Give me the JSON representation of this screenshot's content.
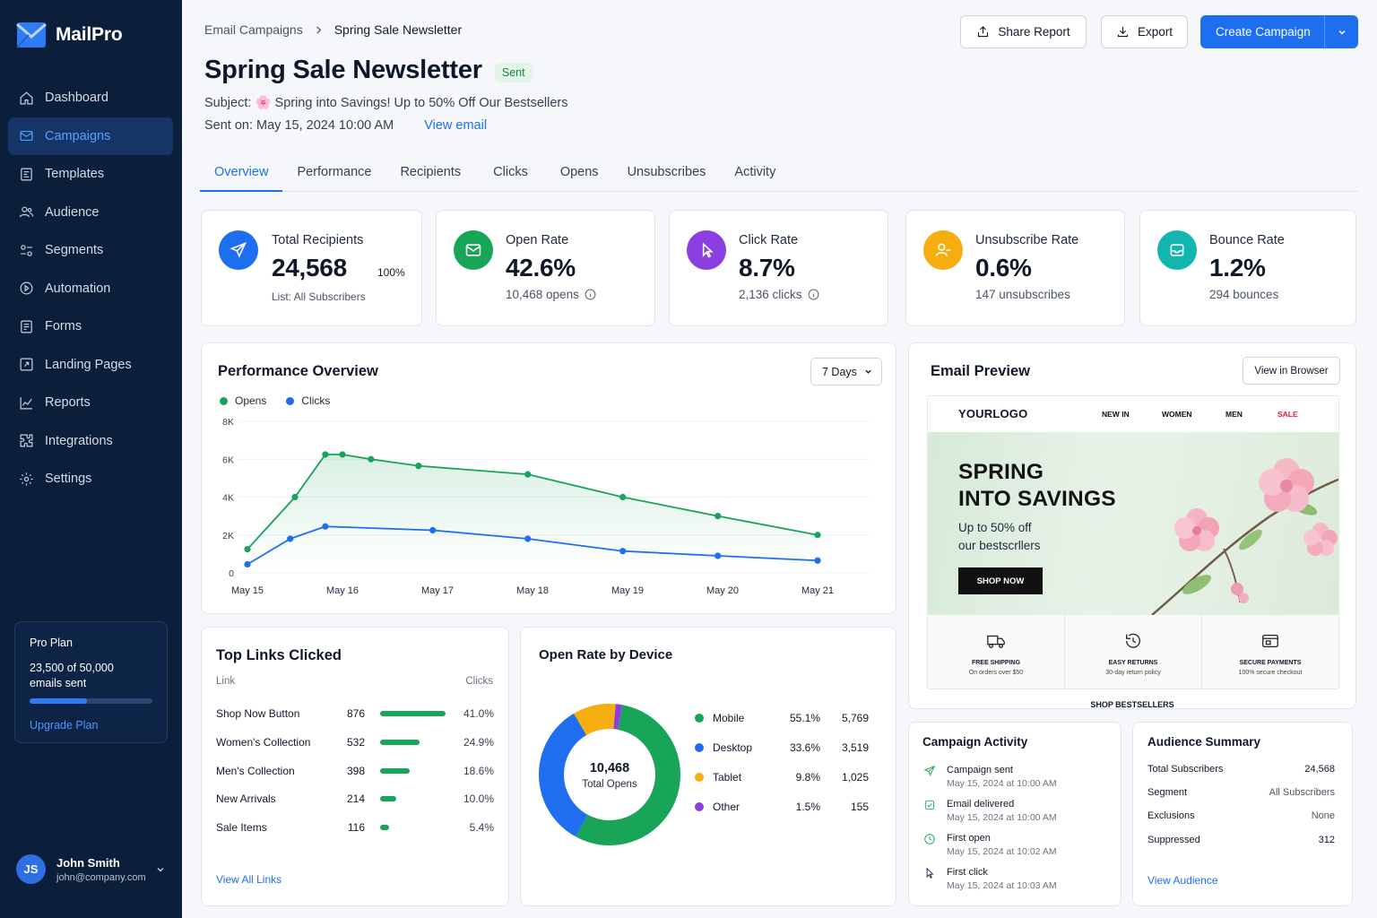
{
  "app": {
    "name": "MailPro"
  },
  "sidebar": {
    "items": [
      {
        "label": "Dashboard",
        "icon": "home-icon"
      },
      {
        "label": "Campaigns",
        "icon": "mail-icon",
        "active": true
      },
      {
        "label": "Templates",
        "icon": "template-icon"
      },
      {
        "label": "Audience",
        "icon": "users-icon"
      },
      {
        "label": "Segments",
        "icon": "segments-icon"
      },
      {
        "label": "Automation",
        "icon": "automation-icon"
      },
      {
        "label": "Forms",
        "icon": "form-icon"
      },
      {
        "label": "Landing Pages",
        "icon": "landing-page-icon"
      },
      {
        "label": "Reports",
        "icon": "chart-icon"
      },
      {
        "label": "Integrations",
        "icon": "puzzle-icon"
      },
      {
        "label": "Settings",
        "icon": "gear-icon"
      }
    ],
    "plan": {
      "name": "Pro Plan",
      "usage_line1": "23,500 of 50,000",
      "usage_line2": "emails sent",
      "usage_fraction": 0.47,
      "upgrade": "Upgrade Plan"
    },
    "user": {
      "initials": "JS",
      "name": "John Smith",
      "email": "john@company.com"
    }
  },
  "header": {
    "breadcrumb": [
      "Email Campaigns",
      "Spring Sale Newsletter"
    ],
    "title": "Spring Sale Newsletter",
    "status": "Sent",
    "subject_label": "Subject:",
    "subject": "🌸 Spring into Savings! Up to 50% Off Our Bestsellers",
    "sent_on": "Sent on: May 15, 2024 10:00 AM",
    "view_email": "View email",
    "share_button": "Share Report",
    "export_button": "Export",
    "create_button": "Create Campaign"
  },
  "tabs": [
    "Overview",
    "Performance",
    "Recipients",
    "Clicks",
    "Opens",
    "Unsubscribes",
    "Activity"
  ],
  "stats": [
    {
      "label": "Total Recipients",
      "value": "24,568",
      "pct": "100%",
      "sub": "List: All Subscribers",
      "icon": "send-icon",
      "color": "#1e6ff0"
    },
    {
      "label": "Open Rate",
      "value": "42.6%",
      "sub": "10,468 opens",
      "icon": "envelope-icon",
      "color": "#18a558"
    },
    {
      "label": "Click Rate",
      "value": "8.7%",
      "sub": "2,136 clicks",
      "icon": "cursor-icon",
      "color": "#8b3fe0"
    },
    {
      "label": "Unsubscribe Rate",
      "value": "0.6%",
      "sub": "147 unsubscribes",
      "icon": "user-minus-icon",
      "color": "#f6ad0f"
    },
    {
      "label": "Bounce Rate",
      "value": "1.2%",
      "sub": "294 bounces",
      "icon": "inbox-icon",
      "color": "#12b5b0"
    }
  ],
  "performance": {
    "title": "Performance Overview",
    "range": "7 Days",
    "chart_data": {
      "type": "line",
      "categories": [
        "May 15",
        "May 16",
        "May 17",
        "May 18",
        "May 19",
        "May 20",
        "May 21"
      ],
      "y_ticks": [
        "0",
        "2K",
        "4K",
        "6K",
        "8K"
      ],
      "ylim": [
        0,
        8000
      ],
      "series": [
        {
          "name": "Opens",
          "color": "#19a35a",
          "x": [
            0,
            0.5,
            0.82,
            1.0,
            1.3,
            1.8,
            2.95,
            3.95,
            4.95,
            6.0
          ],
          "values": [
            1250,
            4000,
            6250,
            6250,
            6000,
            5650,
            5200,
            4000,
            3000,
            2000
          ]
        },
        {
          "name": "Clicks",
          "color": "#1e6ff0",
          "x": [
            0,
            0.45,
            0.82,
            1.95,
            2.95,
            3.95,
            4.95,
            6.0
          ],
          "values": [
            450,
            1800,
            2450,
            2250,
            1800,
            1150,
            900,
            650
          ]
        }
      ]
    }
  },
  "email_preview": {
    "title": "Email Preview",
    "view_browser": "View in Browser",
    "logo": "YOURLOGO",
    "nav": [
      "NEW IN",
      "WOMEN",
      "MEN",
      "SALE"
    ],
    "hero_line1": "SPRING",
    "hero_line2": "INTO SAVINGS",
    "hero_sub1": "Up to 50% off",
    "hero_sub2": "our bestscrllers",
    "shop_now": "SHOP NOW",
    "features": [
      {
        "title": "FREE SHIPPING",
        "sub": "On orders over $50",
        "icon": "truck-icon"
      },
      {
        "title": "EASY RETURNS",
        "sub": "30-day return policy",
        "icon": "return-icon"
      },
      {
        "title": "SECURE PAYMENTS",
        "sub": "100% secure checkout",
        "icon": "card-icon"
      }
    ],
    "bestsellers": "SHOP BESTSELLERS"
  },
  "top_links": {
    "title": "Top Links Clicked",
    "col_link": "Link",
    "col_clicks": "Clicks",
    "rows": [
      {
        "name": "Shop Now Button",
        "clicks": "876",
        "pct": "41.0%",
        "share": 0.41
      },
      {
        "name": "Women's Collection",
        "clicks": "532",
        "pct": "24.9%",
        "share": 0.249
      },
      {
        "name": "Men's Collection",
        "clicks": "398",
        "pct": "18.6%",
        "share": 0.186
      },
      {
        "name": "New Arrivals",
        "clicks": "214",
        "pct": "10.0%",
        "share": 0.1
      },
      {
        "name": "Sale Items",
        "clicks": "116",
        "pct": "5.4%",
        "share": 0.054
      }
    ],
    "view_all": "View All Links"
  },
  "devices": {
    "title": "Open Rate by Device",
    "total": "10,468",
    "total_label": "Total Opens",
    "chart_data": {
      "type": "pie",
      "categories": [
        "Mobile",
        "Desktop",
        "Tablet",
        "Other"
      ],
      "values": [
        55.1,
        33.6,
        9.8,
        1.5
      ],
      "counts": [
        "5,769",
        "3,519",
        "1,025",
        "155"
      ],
      "pct_labels": [
        "55.1%",
        "33.6%",
        "9.8%",
        "1.5%"
      ],
      "colors": [
        "#19a558",
        "#1e6ff0",
        "#f6ad0f",
        "#8b3fe0"
      ]
    }
  },
  "activity": {
    "title": "Campaign Activity",
    "items": [
      {
        "title": "Campaign sent",
        "date": "May 15, 2024 at 10:00 AM",
        "icon": "send-icon"
      },
      {
        "title": "Email delivered",
        "date": "May 15, 2024 at 10:00 AM",
        "icon": "check-shield-icon"
      },
      {
        "title": "First open",
        "date": "May 15, 2024 at 10:02 AM",
        "icon": "clock-icon"
      },
      {
        "title": "First click",
        "date": "May 15, 2024 at 10:03 AM",
        "icon": "cursor-icon"
      }
    ]
  },
  "audience": {
    "title": "Audience Summary",
    "rows": [
      {
        "label": "Total Subscribers",
        "value": "24,568"
      },
      {
        "label": "Segment",
        "value": "All Subscribers"
      },
      {
        "label": "Exclusions",
        "value": "None"
      },
      {
        "label": "Suppressed",
        "value": "312"
      }
    ],
    "view": "View Audience"
  }
}
